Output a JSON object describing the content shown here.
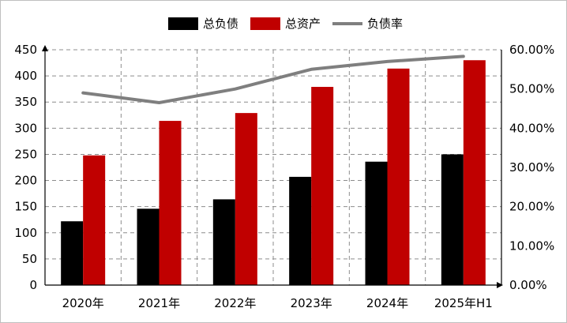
{
  "chart_data": {
    "type": "bar",
    "categories": [
      "2020年",
      "2021年",
      "2022年",
      "2023年",
      "2024年",
      "2025年H1"
    ],
    "series": [
      {
        "name": "总负债",
        "type": "bar",
        "axis": "left",
        "color": "#000000",
        "values": [
          122,
          146,
          164,
          207,
          236,
          250
        ]
      },
      {
        "name": "总资产",
        "type": "bar",
        "axis": "left",
        "color": "#c00000",
        "values": [
          248,
          314,
          329,
          379,
          414,
          430
        ]
      },
      {
        "name": "负债率",
        "type": "line",
        "axis": "right",
        "color": "#7f7f7f",
        "values": [
          0.49,
          0.465,
          0.5,
          0.55,
          0.57,
          0.583
        ]
      }
    ],
    "y_left": {
      "min": 0,
      "max": 450,
      "step": 50,
      "ticks": [
        "0",
        "50",
        "100",
        "150",
        "200",
        "250",
        "300",
        "350",
        "400",
        "450"
      ]
    },
    "y_right": {
      "min": 0,
      "max": 0.6,
      "step": 0.1,
      "ticks": [
        "0.00%",
        "10.00%",
        "20.00%",
        "30.00%",
        "40.00%",
        "50.00%",
        "60.00%"
      ]
    },
    "grid": true,
    "legend": "top-center",
    "title": "",
    "xlabel": "",
    "ylabel": ""
  }
}
